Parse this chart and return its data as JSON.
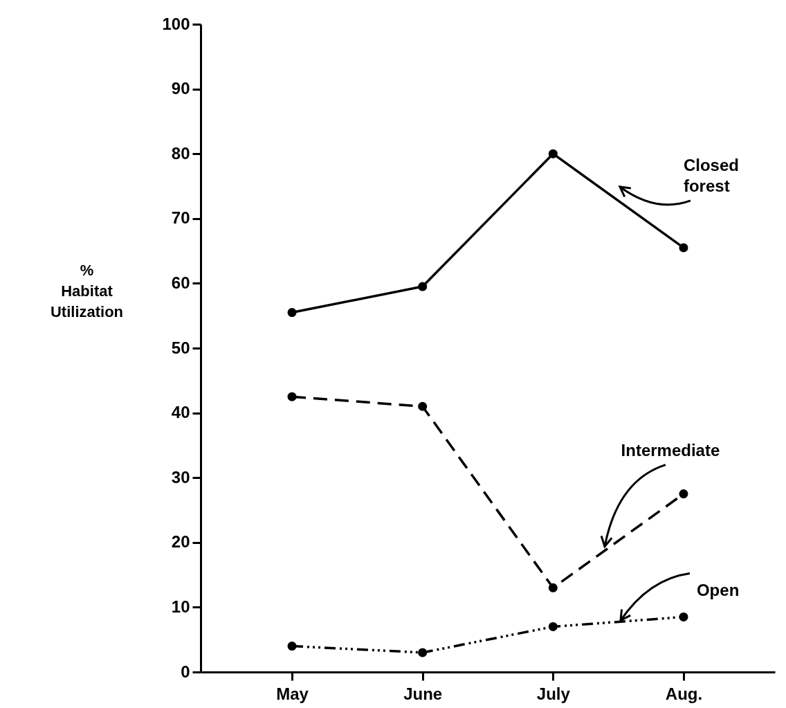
{
  "chart_data": {
    "type": "line",
    "ylabel": "% Habitat Utilization",
    "categories": [
      "May",
      "June",
      "July",
      "Aug."
    ],
    "series": [
      {
        "name": "Closed forest",
        "color": "#000000",
        "line_style": "solid",
        "values": [
          55.5,
          59.5,
          80,
          65.5
        ]
      },
      {
        "name": "Intermediate",
        "color": "#000000",
        "line_style": "dashed",
        "values": [
          42.5,
          41,
          13,
          27.5
        ]
      },
      {
        "name": "Open",
        "color": "#000000",
        "line_style": "dotted",
        "values": [
          4,
          3,
          7,
          8.5
        ]
      }
    ],
    "ylim": [
      0,
      100
    ],
    "yticks": [
      0,
      10,
      20,
      30,
      40,
      50,
      60,
      70,
      80,
      90,
      100
    ],
    "grid": false,
    "marker": "circle"
  }
}
